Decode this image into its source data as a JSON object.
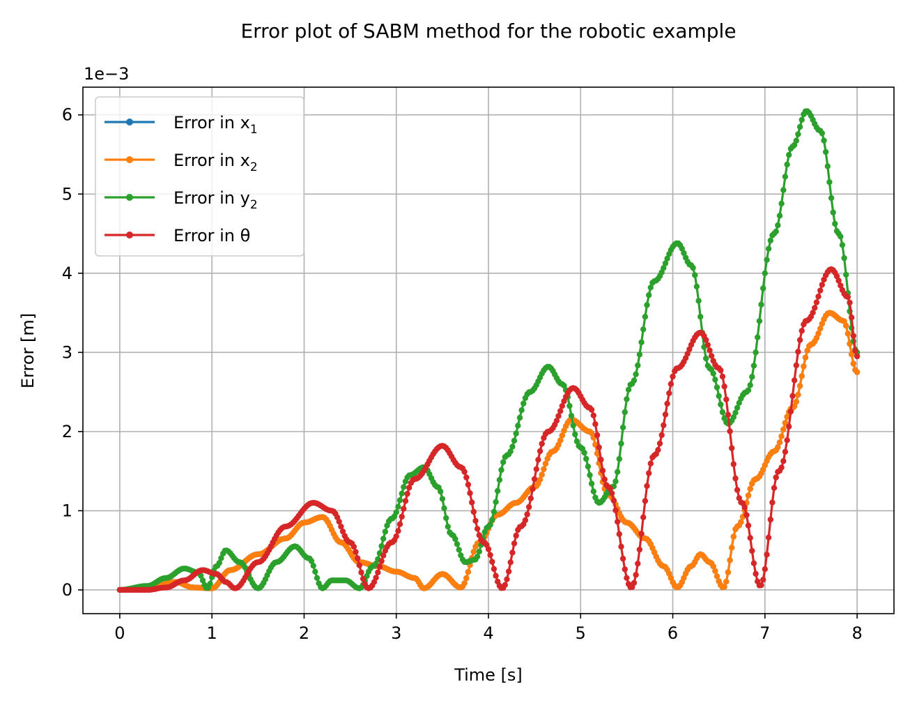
{
  "chart_data": {
    "type": "line",
    "title": "Error plot of SABM method for the robotic example",
    "xlabel": "Time [s]",
    "ylabel": "Error [m]",
    "y_offset_text": "1e−3",
    "xlim": [
      -0.4,
      8.4
    ],
    "ylim": [
      -0.3,
      6.35
    ],
    "xticks": [
      0,
      1,
      2,
      3,
      4,
      5,
      6,
      7,
      8
    ],
    "xtick_labels": [
      "0",
      "1",
      "2",
      "3",
      "4",
      "5",
      "6",
      "7",
      "8"
    ],
    "yticks": [
      0,
      1,
      2,
      3,
      4,
      5,
      6
    ],
    "ytick_labels": [
      "0",
      "1",
      "2",
      "3",
      "4",
      "5",
      "6"
    ],
    "grid": true,
    "legend_position": "upper-left",
    "series": [
      {
        "name": "Error in x",
        "subscript": "1",
        "color": "#1f77b4",
        "x": [
          0,
          0.3,
          0.6,
          0.8,
          1.0,
          1.2,
          1.5,
          1.8,
          2.0,
          2.2,
          2.4,
          2.6,
          2.8,
          3.0,
          3.2,
          3.3,
          3.5,
          3.7,
          3.9,
          4.1,
          4.3,
          4.5,
          4.7,
          4.9,
          5.1,
          5.3,
          5.5,
          5.7,
          5.9,
          6.05,
          6.2,
          6.3,
          6.4,
          6.55,
          6.7,
          6.9,
          7.1,
          7.3,
          7.5,
          7.7,
          7.85,
          8.0
        ],
        "values": [
          0,
          0.03,
          0.1,
          0.03,
          0.02,
          0.25,
          0.45,
          0.65,
          0.85,
          0.92,
          0.6,
          0.35,
          0.3,
          0.23,
          0.15,
          0.02,
          0.2,
          0.03,
          0.6,
          0.95,
          1.1,
          1.3,
          1.75,
          2.15,
          2.0,
          1.2,
          0.85,
          0.65,
          0.3,
          0.03,
          0.3,
          0.45,
          0.35,
          0.03,
          0.8,
          1.4,
          1.75,
          2.3,
          3.1,
          3.5,
          3.4,
          2.75
        ]
      },
      {
        "name": "Error in x",
        "subscript": "2",
        "color": "#ff7f0e",
        "x": [
          0,
          0.3,
          0.6,
          0.8,
          1.0,
          1.2,
          1.5,
          1.8,
          2.0,
          2.2,
          2.4,
          2.6,
          2.8,
          3.0,
          3.2,
          3.3,
          3.5,
          3.7,
          3.9,
          4.1,
          4.3,
          4.5,
          4.7,
          4.9,
          5.1,
          5.3,
          5.5,
          5.7,
          5.9,
          6.05,
          6.2,
          6.3,
          6.4,
          6.55,
          6.7,
          6.9,
          7.1,
          7.3,
          7.5,
          7.7,
          7.85,
          8.0
        ],
        "values": [
          0,
          0.03,
          0.1,
          0.03,
          0.02,
          0.25,
          0.45,
          0.65,
          0.85,
          0.92,
          0.6,
          0.35,
          0.3,
          0.23,
          0.15,
          0.02,
          0.2,
          0.03,
          0.6,
          0.95,
          1.1,
          1.3,
          1.75,
          2.15,
          2.0,
          1.2,
          0.85,
          0.65,
          0.3,
          0.03,
          0.3,
          0.45,
          0.35,
          0.03,
          0.8,
          1.4,
          1.75,
          2.3,
          3.1,
          3.5,
          3.4,
          2.75
        ]
      },
      {
        "name": "Error in y",
        "subscript": "2",
        "color": "#2ca02c",
        "x": [
          0,
          0.3,
          0.5,
          0.7,
          0.85,
          0.95,
          1.05,
          1.15,
          1.3,
          1.5,
          1.7,
          1.9,
          2.05,
          2.2,
          2.3,
          2.45,
          2.6,
          2.75,
          2.95,
          3.15,
          3.3,
          3.45,
          3.6,
          3.75,
          3.85,
          4.0,
          4.2,
          4.45,
          4.65,
          4.8,
          5.0,
          5.2,
          5.35,
          5.55,
          5.8,
          6.05,
          6.2,
          6.4,
          6.6,
          6.8,
          7.1,
          7.3,
          7.45,
          7.6,
          7.8,
          8.0
        ],
        "values": [
          0,
          0.05,
          0.15,
          0.27,
          0.22,
          0.02,
          0.3,
          0.5,
          0.35,
          0.02,
          0.35,
          0.55,
          0.4,
          0.02,
          0.12,
          0.12,
          0.02,
          0.3,
          0.9,
          1.45,
          1.55,
          1.3,
          0.7,
          0.35,
          0.38,
          0.8,
          1.7,
          2.5,
          2.82,
          2.6,
          1.8,
          1.1,
          1.3,
          2.6,
          3.9,
          4.38,
          4.1,
          2.8,
          2.1,
          2.5,
          4.5,
          5.6,
          6.05,
          5.8,
          4.5,
          3.0
        ]
      },
      {
        "name": "Error in θ",
        "subscript": "",
        "color": "#d62728",
        "x": [
          0,
          0.3,
          0.5,
          0.7,
          0.9,
          1.05,
          1.15,
          1.25,
          1.5,
          1.8,
          2.1,
          2.3,
          2.5,
          2.7,
          2.95,
          3.2,
          3.5,
          3.7,
          3.95,
          4.15,
          4.35,
          4.65,
          4.92,
          5.1,
          5.3,
          5.55,
          5.8,
          6.05,
          6.3,
          6.5,
          6.75,
          6.95,
          7.15,
          7.45,
          7.72,
          7.9,
          8.0
        ],
        "values": [
          0,
          0.0,
          0.03,
          0.12,
          0.25,
          0.2,
          0.1,
          0.02,
          0.35,
          0.8,
          1.1,
          1.0,
          0.6,
          0.02,
          0.6,
          1.4,
          1.82,
          1.55,
          0.6,
          0.02,
          0.8,
          2.0,
          2.55,
          2.3,
          1.3,
          0.03,
          1.7,
          2.8,
          3.25,
          2.8,
          1.1,
          0.05,
          1.5,
          3.4,
          4.05,
          3.7,
          2.95
        ]
      }
    ]
  }
}
